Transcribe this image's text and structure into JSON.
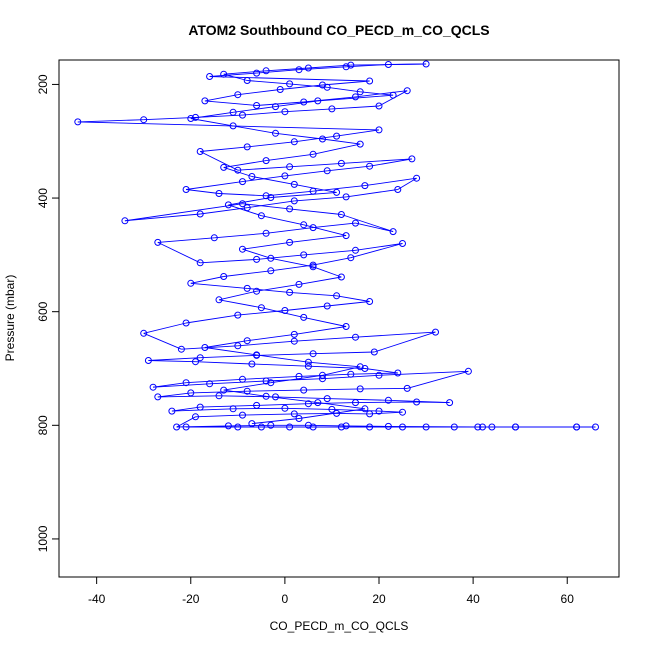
{
  "chart_data": {
    "type": "line",
    "title": "ATOM2 Southbound CO_PECD_m_CO_QCLS",
    "xlabel": "CO_PECD_m_CO_QCLS",
    "ylabel": "Pressure (mbar)",
    "xlim": [
      -48,
      71
    ],
    "ylim": [
      1067,
      157
    ],
    "y_inverted": true,
    "x_ticks": [
      -40,
      -20,
      0,
      20,
      40,
      60
    ],
    "y_ticks": [
      200,
      400,
      600,
      800,
      1000
    ],
    "x_tick_labels": [
      "-40",
      "-20",
      "0",
      "20",
      "40",
      "60"
    ],
    "y_tick_labels": [
      "200",
      "400",
      "600",
      "800",
      "1000"
    ],
    "grid": false,
    "legend": "none",
    "series": [
      {
        "color": "#0000ff",
        "marker": "open-circle",
        "points": [
          [
            -21,
            803
          ],
          [
            -10,
            803
          ],
          [
            -5,
            803
          ],
          [
            1,
            803
          ],
          [
            6,
            803
          ],
          [
            12,
            803
          ],
          [
            18,
            803
          ],
          [
            25,
            803
          ],
          [
            30,
            803
          ],
          [
            36,
            803
          ],
          [
            42,
            803
          ],
          [
            44,
            803
          ],
          [
            49,
            803
          ],
          [
            62,
            803
          ],
          [
            66,
            803
          ],
          [
            62,
            803
          ],
          [
            49,
            803
          ],
          [
            41,
            803
          ],
          [
            22,
            802
          ],
          [
            13,
            801
          ],
          [
            5,
            800
          ],
          [
            -3,
            800
          ],
          [
            -12,
            801
          ],
          [
            -23,
            803
          ],
          [
            -19,
            785
          ],
          [
            -9,
            782
          ],
          [
            2,
            780
          ],
          [
            11,
            779
          ],
          [
            18,
            780
          ],
          [
            25,
            777
          ],
          [
            20,
            775
          ],
          [
            10,
            772
          ],
          [
            0,
            770
          ],
          [
            -11,
            771
          ],
          [
            -24,
            775
          ],
          [
            -18,
            768
          ],
          [
            -6,
            765
          ],
          [
            5,
            762
          ],
          [
            15,
            760
          ],
          [
            28,
            759
          ],
          [
            35,
            760
          ],
          [
            22,
            756
          ],
          [
            9,
            753
          ],
          [
            -2,
            750
          ],
          [
            -14,
            748
          ],
          [
            -27,
            750
          ],
          [
            -20,
            743
          ],
          [
            -8,
            740
          ],
          [
            4,
            738
          ],
          [
            16,
            736
          ],
          [
            26,
            735
          ],
          [
            39,
            705
          ],
          [
            20,
            712
          ],
          [
            8,
            718
          ],
          [
            -4,
            722
          ],
          [
            -16,
            727
          ],
          [
            -28,
            733
          ],
          [
            -21,
            725
          ],
          [
            -9,
            719
          ],
          [
            3,
            714
          ],
          [
            14,
            710
          ],
          [
            24,
            708
          ],
          [
            17,
            700
          ],
          [
            5,
            696
          ],
          [
            -7,
            692
          ],
          [
            -19,
            688
          ],
          [
            -29,
            686
          ],
          [
            -18,
            681
          ],
          [
            -6,
            677
          ],
          [
            6,
            674
          ],
          [
            19,
            671
          ],
          [
            32,
            636
          ],
          [
            15,
            645
          ],
          [
            2,
            652
          ],
          [
            -10,
            660
          ],
          [
            -22,
            666
          ],
          [
            -30,
            638
          ],
          [
            -21,
            620
          ],
          [
            -10,
            606
          ],
          [
            0,
            598
          ],
          [
            9,
            590
          ],
          [
            18,
            582
          ],
          [
            11,
            572
          ],
          [
            1,
            566
          ],
          [
            -8,
            559
          ],
          [
            -20,
            550
          ],
          [
            -13,
            538
          ],
          [
            -3,
            528
          ],
          [
            6,
            518
          ],
          [
            14,
            505
          ],
          [
            25,
            480
          ],
          [
            15,
            492
          ],
          [
            4,
            500
          ],
          [
            -6,
            508
          ],
          [
            -18,
            514
          ],
          [
            -27,
            478
          ],
          [
            -15,
            470
          ],
          [
            -4,
            462
          ],
          [
            6,
            452
          ],
          [
            15,
            444
          ],
          [
            23,
            459
          ],
          [
            12,
            429
          ],
          [
            1,
            419
          ],
          [
            -9,
            410
          ],
          [
            -34,
            440
          ],
          [
            -18,
            428
          ],
          [
            -8,
            417
          ],
          [
            2,
            405
          ],
          [
            13,
            398
          ],
          [
            24,
            385
          ],
          [
            28,
            365
          ],
          [
            17,
            378
          ],
          [
            6,
            388
          ],
          [
            -4,
            396
          ],
          [
            -14,
            392
          ],
          [
            -21,
            385
          ],
          [
            -9,
            371
          ],
          [
            0,
            361
          ],
          [
            9,
            352
          ],
          [
            18,
            344
          ],
          [
            27,
            331
          ],
          [
            12,
            339
          ],
          [
            1,
            345
          ],
          [
            -10,
            351
          ],
          [
            -18,
            318
          ],
          [
            -8,
            310
          ],
          [
            2,
            301
          ],
          [
            11,
            291
          ],
          [
            20,
            280
          ],
          [
            -44,
            266
          ],
          [
            -30,
            262
          ],
          [
            -19,
            258
          ],
          [
            -9,
            254
          ],
          [
            0,
            248
          ],
          [
            10,
            243
          ],
          [
            20,
            238
          ],
          [
            26,
            211
          ],
          [
            15,
            222
          ],
          [
            4,
            231
          ],
          [
            -6,
            237
          ],
          [
            -17,
            229
          ],
          [
            -10,
            218
          ],
          [
            -1,
            209
          ],
          [
            8,
            201
          ],
          [
            18,
            194
          ],
          [
            -16,
            186
          ],
          [
            -6,
            180
          ],
          [
            3,
            174
          ],
          [
            13,
            169
          ],
          [
            22,
            165
          ],
          [
            30,
            164
          ],
          [
            14,
            166
          ],
          [
            5,
            171
          ],
          [
            -4,
            176
          ],
          [
            -13,
            182
          ],
          [
            -8,
            193
          ],
          [
            1,
            199
          ],
          [
            9,
            205
          ],
          [
            16,
            213
          ],
          [
            23,
            219
          ],
          [
            7,
            229
          ],
          [
            -2,
            239
          ],
          [
            -11,
            249
          ],
          [
            -20,
            260
          ],
          [
            -11,
            273
          ],
          [
            -2,
            286
          ],
          [
            8,
            296
          ],
          [
            16,
            305
          ],
          [
            6,
            323
          ],
          [
            -4,
            334
          ],
          [
            -13,
            346
          ],
          [
            -7,
            362
          ],
          [
            2,
            376
          ],
          [
            11,
            390
          ],
          [
            -3,
            399
          ],
          [
            -12,
            412
          ],
          [
            -5,
            431
          ],
          [
            4,
            447
          ],
          [
            13,
            466
          ],
          [
            1,
            478
          ],
          [
            -9,
            490
          ],
          [
            -3,
            506
          ],
          [
            6,
            521
          ],
          [
            12,
            539
          ],
          [
            3,
            552
          ],
          [
            -6,
            564
          ],
          [
            -14,
            579
          ],
          [
            -5,
            593
          ],
          [
            4,
            610
          ],
          [
            13,
            626
          ],
          [
            2,
            640
          ],
          [
            -8,
            651
          ],
          [
            -17,
            663
          ],
          [
            -6,
            676
          ],
          [
            5,
            689
          ],
          [
            16,
            697
          ],
          [
            8,
            712
          ],
          [
            -3,
            725
          ],
          [
            -13,
            738
          ],
          [
            -4,
            749
          ],
          [
            7,
            760
          ],
          [
            17,
            771
          ],
          [
            3,
            788
          ],
          [
            -7,
            797
          ]
        ]
      }
    ]
  }
}
